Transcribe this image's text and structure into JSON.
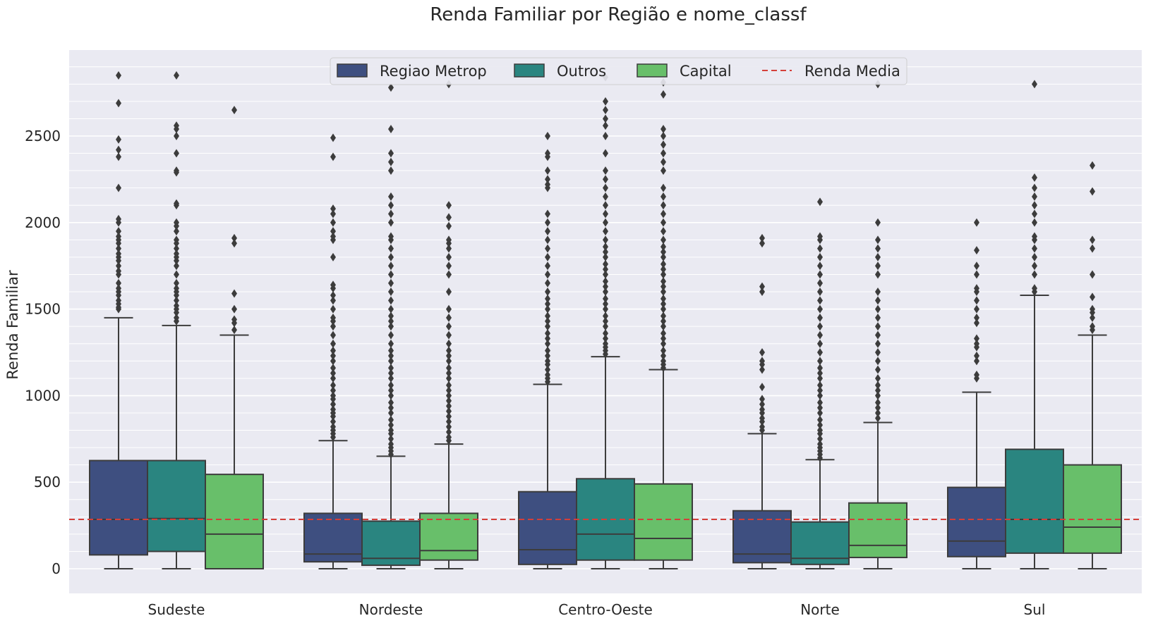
{
  "chart_data": {
    "type": "boxplot",
    "title": "Renda Familiar por Região e nome_classf",
    "xlabel": "",
    "ylabel": "Renda Familiar",
    "ylim": [
      -130,
      3000
    ],
    "yticks": [
      0,
      500,
      1000,
      1500,
      2000,
      2500
    ],
    "grid": true,
    "legend_position": "top-center",
    "colors": {
      "Regiao Metrop": "#3e4f80",
      "Outros": "#2a8580",
      "Capital": "#68bf6a",
      "Renda Media": "#d43f3a"
    },
    "background": "#eaeaf2",
    "categories": [
      "Sudeste",
      "Nordeste",
      "Centro-Oeste",
      "Norte",
      "Sul"
    ],
    "series": [
      {
        "name": "Regiao Metrop",
        "boxes": [
          {
            "whislo": 0,
            "q1": 80,
            "med": 285,
            "q3": 625,
            "whishi": 1450,
            "fliers": [
              1500,
              1510,
              1530,
              1550,
              1580,
              1600,
              1620,
              1650,
              1700,
              1720,
              1750,
              1780,
              1800,
              1820,
              1850,
              1880,
              1900,
              1920,
              1950,
              2000,
              2020,
              2200,
              2380,
              2420,
              2480,
              2690,
              2850
            ]
          },
          {
            "whislo": 0,
            "q1": 40,
            "med": 85,
            "q3": 320,
            "whishi": 740,
            "fliers": [
              760,
              780,
              800,
              820,
              850,
              880,
              900,
              920,
              950,
              980,
              1000,
              1030,
              1060,
              1100,
              1130,
              1160,
              1200,
              1230,
              1260,
              1300,
              1350,
              1400,
              1430,
              1450,
              1500,
              1550,
              1580,
              1620,
              1640,
              1800,
              1900,
              1920,
              1950,
              2000,
              2050,
              2080,
              2380,
              2490
            ]
          },
          {
            "whislo": 0,
            "q1": 25,
            "med": 110,
            "q3": 445,
            "whishi": 1065,
            "fliers": [
              1080,
              1100,
              1120,
              1150,
              1180,
              1200,
              1230,
              1260,
              1300,
              1330,
              1360,
              1400,
              1430,
              1460,
              1500,
              1530,
              1560,
              1600,
              1650,
              1700,
              1750,
              1800,
              1850,
              1900,
              1950,
              2000,
              2050,
              2200,
              2220,
              2250,
              2300,
              2380,
              2400,
              2500
            ]
          },
          {
            "whislo": 0,
            "q1": 35,
            "med": 85,
            "q3": 335,
            "whishi": 780,
            "fliers": [
              800,
              820,
              850,
              870,
              900,
              920,
              950,
              980,
              1050,
              1150,
              1180,
              1200,
              1250,
              1600,
              1630,
              1880,
              1910
            ]
          },
          {
            "whislo": 0,
            "q1": 70,
            "med": 160,
            "q3": 470,
            "whishi": 1020,
            "fliers": [
              1100,
              1120,
              1200,
              1230,
              1280,
              1300,
              1330,
              1420,
              1450,
              1500,
              1550,
              1600,
              1620,
              1700,
              1750,
              1840,
              2000
            ]
          }
        ]
      },
      {
        "name": "Outros",
        "boxes": [
          {
            "whislo": 0,
            "q1": 100,
            "med": 290,
            "q3": 625,
            "whishi": 1405,
            "fliers": [
              1430,
              1450,
              1480,
              1500,
              1520,
              1550,
              1580,
              1600,
              1620,
              1650,
              1700,
              1750,
              1780,
              1800,
              1820,
              1850,
              1880,
              1900,
              1950,
              1980,
              2000,
              2100,
              2110,
              2290,
              2300,
              2400,
              2500,
              2540,
              2560,
              2850
            ]
          },
          {
            "whislo": 0,
            "q1": 20,
            "med": 60,
            "q3": 275,
            "whishi": 650,
            "fliers": [
              660,
              680,
              700,
              720,
              750,
              780,
              800,
              830,
              860,
              900,
              930,
              960,
              1000,
              1030,
              1060,
              1100,
              1130,
              1160,
              1200,
              1230,
              1260,
              1300,
              1350,
              1400,
              1430,
              1460,
              1500,
              1550,
              1600,
              1650,
              1700,
              1750,
              1800,
              1850,
              1900,
              1920,
              2000,
              2050,
              2100,
              2150,
              2300,
              2350,
              2400,
              2540,
              2780
            ]
          },
          {
            "whislo": 0,
            "q1": 50,
            "med": 200,
            "q3": 520,
            "whishi": 1225,
            "fliers": [
              1240,
              1260,
              1280,
              1300,
              1330,
              1360,
              1400,
              1430,
              1460,
              1500,
              1530,
              1560,
              1600,
              1630,
              1660,
              1700,
              1730,
              1760,
              1800,
              1830,
              1860,
              1900,
              1950,
              2000,
              2050,
              2100,
              2150,
              2200,
              2250,
              2300,
              2400,
              2500,
              2560,
              2600,
              2650,
              2700,
              2840
            ]
          },
          {
            "whislo": 0,
            "q1": 25,
            "med": 60,
            "q3": 270,
            "whishi": 630,
            "fliers": [
              640,
              660,
              680,
              700,
              720,
              750,
              780,
              800,
              830,
              860,
              900,
              930,
              960,
              1000,
              1030,
              1060,
              1100,
              1130,
              1160,
              1200,
              1250,
              1300,
              1350,
              1400,
              1450,
              1500,
              1550,
              1600,
              1650,
              1700,
              1750,
              1800,
              1850,
              1900,
              1920,
              2120
            ]
          },
          {
            "whislo": 0,
            "q1": 90,
            "med": 285,
            "q3": 690,
            "whishi": 1580,
            "fliers": [
              1600,
              1620,
              1700,
              1750,
              1800,
              1850,
              1900,
              1920,
              2000,
              2050,
              2100,
              2150,
              2200,
              2260,
              2800
            ]
          }
        ]
      },
      {
        "name": "Capital",
        "boxes": [
          {
            "whislo": 0,
            "q1": 0,
            "med": 200,
            "q3": 545,
            "whishi": 1350,
            "fliers": [
              1380,
              1420,
              1440,
              1500,
              1590,
              1880,
              1910,
              2650
            ]
          },
          {
            "whislo": 0,
            "q1": 50,
            "med": 105,
            "q3": 320,
            "whishi": 720,
            "fliers": [
              740,
              760,
              790,
              820,
              850,
              880,
              910,
              940,
              970,
              1000,
              1030,
              1060,
              1100,
              1130,
              1160,
              1200,
              1230,
              1260,
              1300,
              1350,
              1400,
              1450,
              1500,
              1600,
              1700,
              1750,
              1800,
              1850,
              1880,
              1900,
              1980,
              2030,
              2100,
              2800
            ]
          },
          {
            "whislo": 0,
            "q1": 50,
            "med": 175,
            "q3": 490,
            "whishi": 1150,
            "fliers": [
              1160,
              1180,
              1200,
              1230,
              1260,
              1300,
              1330,
              1360,
              1400,
              1430,
              1460,
              1500,
              1530,
              1560,
              1600,
              1630,
              1660,
              1700,
              1730,
              1760,
              1800,
              1830,
              1860,
              1900,
              1950,
              2000,
              2050,
              2100,
              2150,
              2200,
              2300,
              2350,
              2400,
              2450,
              2500,
              2540,
              2740,
              2810
            ]
          },
          {
            "whislo": 0,
            "q1": 65,
            "med": 135,
            "q3": 380,
            "whishi": 845,
            "fliers": [
              870,
              900,
              930,
              960,
              1000,
              1030,
              1060,
              1100,
              1150,
              1200,
              1250,
              1300,
              1350,
              1400,
              1450,
              1500,
              1550,
              1600,
              1700,
              1750,
              1800,
              1850,
              1900,
              2000,
              2800
            ]
          },
          {
            "whislo": 0,
            "q1": 90,
            "med": 240,
            "q3": 600,
            "whishi": 1350,
            "fliers": [
              1380,
              1400,
              1450,
              1480,
              1500,
              1570,
              1700,
              1850,
              1900,
              2180,
              2330
            ]
          }
        ]
      }
    ],
    "reference_line": {
      "name": "Renda Media",
      "value": 285,
      "style": "dashed"
    }
  }
}
